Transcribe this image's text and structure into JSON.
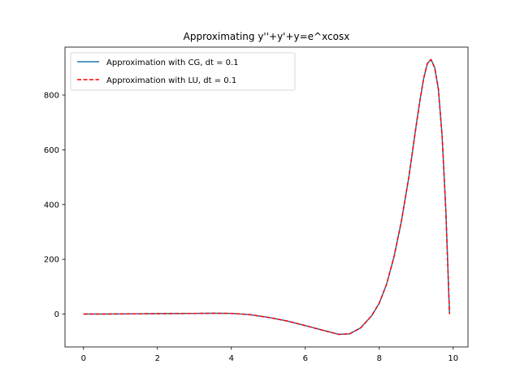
{
  "chart_data": {
    "type": "line",
    "title": "Approximating y''+y'+y=e^xcosx",
    "xlabel": "",
    "ylabel": "",
    "xlim": [
      -0.5,
      10.4
    ],
    "ylim": [
      -120,
      975
    ],
    "xticks": [
      0,
      2,
      4,
      6,
      8,
      10
    ],
    "yticks": [
      0,
      200,
      400,
      600,
      800
    ],
    "grid": false,
    "legend_position": "top-left",
    "series": [
      {
        "name": "Approximation with CG, dt = 0.1",
        "color": "#1f77b4",
        "style": "solid",
        "x": [
          0,
          1,
          2,
          3,
          3.5,
          4,
          4.5,
          5,
          5.5,
          6,
          6.5,
          6.9,
          7.2,
          7.5,
          7.8,
          8.0,
          8.2,
          8.4,
          8.6,
          8.8,
          9.0,
          9.1,
          9.2,
          9.3,
          9.4,
          9.5,
          9.6,
          9.7,
          9.8,
          9.9
        ],
        "y": [
          0,
          0.5,
          1.5,
          2.5,
          3,
          2.5,
          -2,
          -12,
          -25,
          -42,
          -60,
          -74,
          -72,
          -50,
          -5,
          40,
          110,
          210,
          340,
          500,
          690,
          780,
          860,
          915,
          930,
          900,
          820,
          650,
          380,
          0
        ]
      },
      {
        "name": "Approximation with LU, dt = 0.1",
        "color": "#ff0000",
        "style": "dashed",
        "x": [
          0,
          1,
          2,
          3,
          3.5,
          4,
          4.5,
          5,
          5.5,
          6,
          6.5,
          6.9,
          7.2,
          7.5,
          7.8,
          8.0,
          8.2,
          8.4,
          8.6,
          8.8,
          9.0,
          9.1,
          9.2,
          9.3,
          9.4,
          9.5,
          9.6,
          9.7,
          9.8,
          9.9
        ],
        "y": [
          0,
          0.5,
          1.5,
          2.5,
          3,
          2.5,
          -2,
          -12,
          -25,
          -42,
          -60,
          -74,
          -72,
          -50,
          -5,
          40,
          110,
          210,
          340,
          500,
          690,
          780,
          860,
          915,
          930,
          900,
          820,
          650,
          380,
          0
        ]
      }
    ]
  }
}
